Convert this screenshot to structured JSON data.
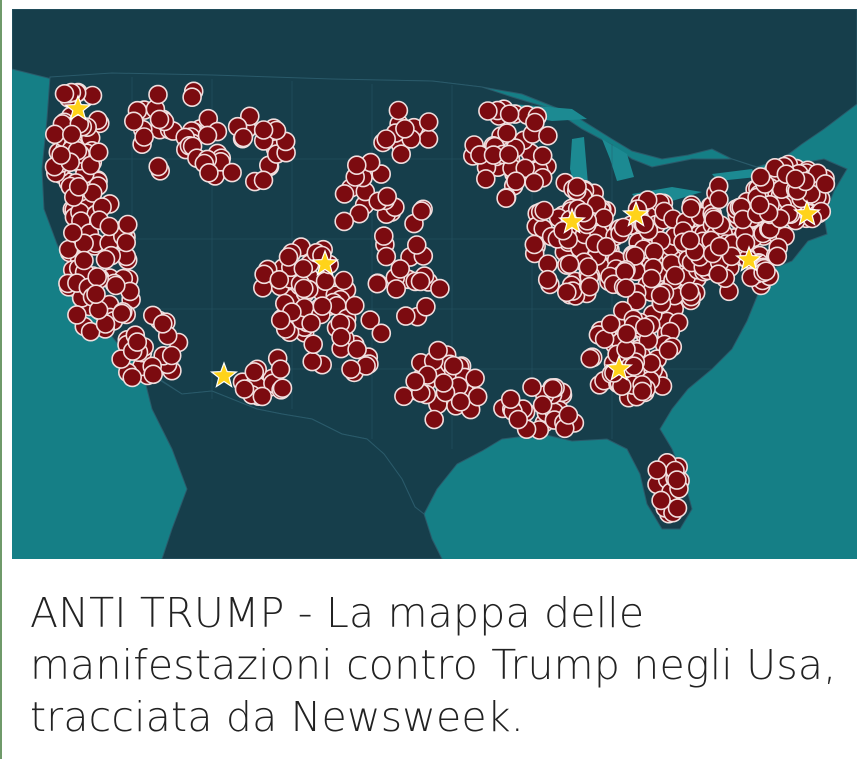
{
  "caption": "ANTI TRUMP - La mappa delle manifestazioni contro Trump negli Usa, tracciata da Newsweek.",
  "map": {
    "colors": {
      "ocean": "#157f86",
      "land": "#163e4b",
      "land_border": "#2a5a6a",
      "lakes": "#1c8a92",
      "dot_fill": "#7c0b10",
      "dot_stroke": "#f1dede",
      "star": "#ffd31a"
    },
    "marker_types": [
      "protest-dot-icon",
      "star-icon"
    ]
  }
}
